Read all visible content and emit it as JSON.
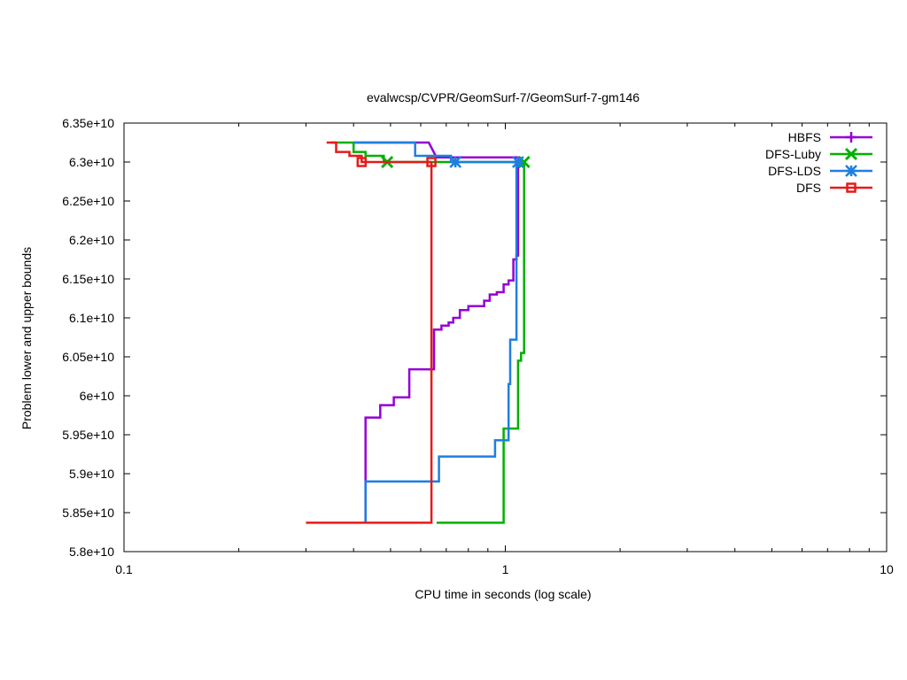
{
  "chart_data": {
    "type": "line",
    "title": "evalwcsp/CVPR/GeomSurf-7/GeomSurf-7-gm146",
    "xlabel": "CPU time in seconds (log scale)",
    "ylabel": "Problem lower and upper bounds",
    "x_scale": "log",
    "xlim": [
      0.1,
      10
    ],
    "ylim": [
      58000000000,
      63500000000
    ],
    "grid": false,
    "legend_position": "top-right",
    "x_ticks": [
      {
        "value": 0.1,
        "label": "0.1"
      },
      {
        "value": 1,
        "label": "1"
      },
      {
        "value": 10,
        "label": "10"
      }
    ],
    "y_ticks": [
      {
        "value": 58000000000,
        "label": "5.8e+10"
      },
      {
        "value": 58500000000,
        "label": "5.85e+10"
      },
      {
        "value": 59000000000,
        "label": "5.9e+10"
      },
      {
        "value": 59500000000,
        "label": "5.95e+10"
      },
      {
        "value": 60000000000,
        "label": "6e+10"
      },
      {
        "value": 60500000000,
        "label": "6.05e+10"
      },
      {
        "value": 61000000000,
        "label": "6.1e+10"
      },
      {
        "value": 61500000000,
        "label": "6.15e+10"
      },
      {
        "value": 62000000000,
        "label": "6.2e+10"
      },
      {
        "value": 62500000000,
        "label": "6.25e+10"
      },
      {
        "value": 63000000000,
        "label": "6.3e+10"
      },
      {
        "value": 63500000000,
        "label": "6.35e+10"
      }
    ],
    "series": [
      {
        "name": "HBFS",
        "color": "#9400d3",
        "marker": "plus",
        "upper": [
          [
            0.4,
            63250000000
          ],
          [
            0.63,
            63250000000
          ],
          [
            0.66,
            63060000000
          ],
          [
            1.08,
            63060000000
          ],
          [
            1.08,
            63000000000
          ]
        ],
        "lower": [
          [
            0.43,
            58370000000
          ],
          [
            0.43,
            59720000000
          ],
          [
            0.47,
            59720000000
          ],
          [
            0.47,
            59880000000
          ],
          [
            0.51,
            59880000000
          ],
          [
            0.51,
            59980000000
          ],
          [
            0.56,
            59980000000
          ],
          [
            0.56,
            60340000000
          ],
          [
            0.65,
            60340000000
          ],
          [
            0.65,
            60850000000
          ],
          [
            0.68,
            60850000000
          ],
          [
            0.68,
            60900000000
          ],
          [
            0.71,
            60900000000
          ],
          [
            0.71,
            60940000000
          ],
          [
            0.73,
            60940000000
          ],
          [
            0.73,
            61000000000
          ],
          [
            0.76,
            61000000000
          ],
          [
            0.76,
            61100000000
          ],
          [
            0.8,
            61100000000
          ],
          [
            0.8,
            61150000000
          ],
          [
            0.88,
            61150000000
          ],
          [
            0.88,
            61220000000
          ],
          [
            0.91,
            61220000000
          ],
          [
            0.91,
            61300000000
          ],
          [
            0.95,
            61300000000
          ],
          [
            0.95,
            61330000000
          ],
          [
            0.99,
            61330000000
          ],
          [
            0.99,
            61430000000
          ],
          [
            1.02,
            61430000000
          ],
          [
            1.02,
            61480000000
          ],
          [
            1.05,
            61480000000
          ],
          [
            1.05,
            61750000000
          ],
          [
            1.07,
            61750000000
          ],
          [
            1.07,
            61800000000
          ],
          [
            1.08,
            61800000000
          ],
          [
            1.08,
            63000000000
          ]
        ],
        "markers": [
          [
            1.08,
            63000000000
          ]
        ]
      },
      {
        "name": "DFS-Luby",
        "color": "#00b000",
        "marker": "x",
        "upper": [
          [
            0.35,
            63250000000
          ],
          [
            0.4,
            63250000000
          ],
          [
            0.4,
            63130000000
          ],
          [
            0.43,
            63130000000
          ],
          [
            0.43,
            63080000000
          ],
          [
            0.48,
            63080000000
          ],
          [
            0.48,
            63000000000
          ],
          [
            1.12,
            63000000000
          ]
        ],
        "lower": [
          [
            0.66,
            58370000000
          ],
          [
            0.99,
            58370000000
          ],
          [
            0.99,
            59580000000
          ],
          [
            1.08,
            59580000000
          ],
          [
            1.08,
            60450000000
          ],
          [
            1.1,
            60450000000
          ],
          [
            1.1,
            60550000000
          ],
          [
            1.12,
            60550000000
          ],
          [
            1.12,
            63000000000
          ]
        ],
        "markers": [
          [
            0.49,
            63000000000
          ],
          [
            1.12,
            63000000000
          ]
        ]
      },
      {
        "name": "DFS-LDS",
        "color": "#1e7fe0",
        "marker": "star",
        "upper": [
          [
            0.4,
            63250000000
          ],
          [
            0.58,
            63250000000
          ],
          [
            0.58,
            63080000000
          ],
          [
            0.72,
            63080000000
          ],
          [
            0.72,
            63000000000
          ],
          [
            1.08,
            63000000000
          ]
        ],
        "lower": [
          [
            0.43,
            58370000000
          ],
          [
            0.43,
            58900000000
          ],
          [
            0.67,
            58900000000
          ],
          [
            0.67,
            59220000000
          ],
          [
            0.94,
            59220000000
          ],
          [
            0.94,
            59430000000
          ],
          [
            1.02,
            59430000000
          ],
          [
            1.02,
            60150000000
          ],
          [
            1.03,
            60150000000
          ],
          [
            1.03,
            60720000000
          ],
          [
            1.07,
            60720000000
          ],
          [
            1.07,
            63000000000
          ]
        ],
        "markers": [
          [
            0.74,
            63000000000
          ],
          [
            1.08,
            63000000000
          ]
        ]
      },
      {
        "name": "DFS",
        "color": "#e51a1a",
        "marker": "square",
        "upper": [
          [
            0.34,
            63250000000
          ],
          [
            0.36,
            63250000000
          ],
          [
            0.36,
            63130000000
          ],
          [
            0.39,
            63130000000
          ],
          [
            0.39,
            63080000000
          ],
          [
            0.42,
            63080000000
          ],
          [
            0.42,
            63000000000
          ],
          [
            0.64,
            63000000000
          ]
        ],
        "lower": [
          [
            0.3,
            58370000000
          ],
          [
            0.64,
            58370000000
          ],
          [
            0.64,
            63000000000
          ]
        ],
        "markers": [
          [
            0.42,
            63000000000
          ],
          [
            0.64,
            63000000000
          ]
        ]
      }
    ]
  }
}
